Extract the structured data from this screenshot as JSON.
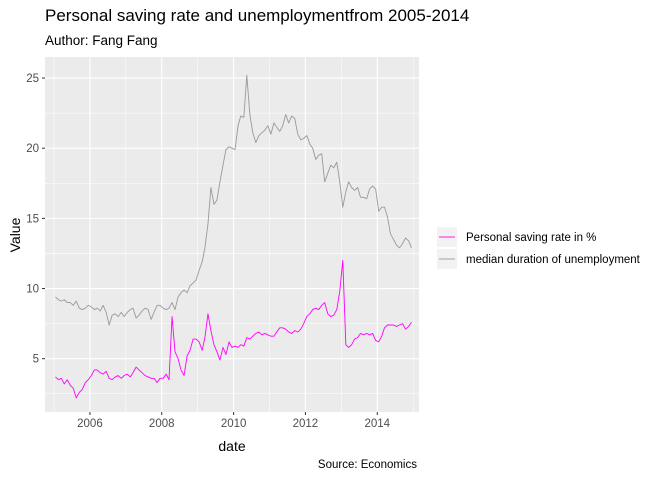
{
  "chart_data": {
    "type": "line",
    "title": "Personal saving rate and unemploymentfrom 2005-2014",
    "subtitle": "Author: Fang Fang",
    "caption": "Source: Economics",
    "xlabel": "date",
    "ylabel": "Value",
    "xlim": [
      "2004-10-01",
      "2015-03-01"
    ],
    "ylim": [
      1.2,
      26.5
    ],
    "x_ticks": [
      "2006",
      "2008",
      "2010",
      "2012",
      "2014"
    ],
    "y_ticks": [
      5,
      10,
      15,
      20,
      25
    ],
    "grid": true,
    "legend_position": "right",
    "series": [
      {
        "name": "Personal saving rate in %",
        "color": "#ff00ff",
        "x": [
          "2005-01",
          "2005-02",
          "2005-03",
          "2005-04",
          "2005-05",
          "2005-06",
          "2005-07",
          "2005-08",
          "2005-09",
          "2005-10",
          "2005-11",
          "2005-12",
          "2006-01",
          "2006-02",
          "2006-03",
          "2006-04",
          "2006-05",
          "2006-06",
          "2006-07",
          "2006-08",
          "2006-09",
          "2006-10",
          "2006-11",
          "2006-12",
          "2007-01",
          "2007-02",
          "2007-03",
          "2007-04",
          "2007-05",
          "2007-06",
          "2007-07",
          "2007-08",
          "2007-09",
          "2007-10",
          "2007-11",
          "2007-12",
          "2008-01",
          "2008-02",
          "2008-03",
          "2008-04",
          "2008-05",
          "2008-06",
          "2008-07",
          "2008-08",
          "2008-09",
          "2008-10",
          "2008-11",
          "2008-12",
          "2009-01",
          "2009-02",
          "2009-03",
          "2009-04",
          "2009-05",
          "2009-06",
          "2009-07",
          "2009-08",
          "2009-09",
          "2009-10",
          "2009-11",
          "2009-12",
          "2010-01",
          "2010-02",
          "2010-03",
          "2010-04",
          "2010-05",
          "2010-06",
          "2010-07",
          "2010-08",
          "2010-09",
          "2010-10",
          "2010-11",
          "2010-12",
          "2011-01",
          "2011-02",
          "2011-03",
          "2011-04",
          "2011-05",
          "2011-06",
          "2011-07",
          "2011-08",
          "2011-09",
          "2011-10",
          "2011-11",
          "2011-12",
          "2012-01",
          "2012-02",
          "2012-03",
          "2012-04",
          "2012-05",
          "2012-06",
          "2012-07",
          "2012-08",
          "2012-09",
          "2012-10",
          "2012-11",
          "2012-12",
          "2013-01",
          "2013-02",
          "2013-03",
          "2013-04",
          "2013-05",
          "2013-06",
          "2013-07",
          "2013-08",
          "2013-09",
          "2013-10",
          "2013-11",
          "2013-12",
          "2014-01",
          "2014-02",
          "2014-03",
          "2014-04",
          "2014-05",
          "2014-06",
          "2014-07",
          "2014-08",
          "2014-09",
          "2014-10",
          "2014-11",
          "2014-12"
        ],
        "values": [
          3.7,
          3.5,
          3.6,
          3.2,
          3.5,
          3.1,
          2.9,
          2.2,
          2.6,
          2.8,
          3.3,
          3.5,
          3.8,
          4.2,
          4.2,
          4.0,
          3.9,
          4.1,
          3.6,
          3.5,
          3.7,
          3.8,
          3.6,
          3.8,
          3.9,
          3.7,
          4.0,
          4.4,
          4.2,
          4.0,
          3.8,
          3.7,
          3.6,
          3.6,
          3.3,
          3.6,
          3.6,
          3.9,
          3.5,
          8.0,
          5.5,
          5.0,
          4.2,
          3.8,
          5.2,
          5.6,
          6.4,
          6.4,
          6.2,
          5.6,
          6.5,
          8.2,
          7.0,
          6.0,
          5.5,
          4.9,
          5.8,
          5.3,
          6.2,
          5.8,
          5.9,
          5.8,
          6.0,
          5.9,
          6.5,
          6.4,
          6.6,
          6.8,
          6.9,
          6.7,
          6.8,
          6.7,
          6.6,
          6.6,
          6.9,
          7.2,
          7.2,
          7.1,
          6.9,
          6.8,
          7.0,
          6.9,
          7.1,
          7.5,
          8.0,
          8.2,
          8.5,
          8.6,
          8.5,
          8.8,
          9.0,
          8.2,
          8.0,
          8.1,
          8.5,
          9.8,
          12.0,
          6.0,
          5.8,
          6.0,
          6.4,
          6.5,
          6.8,
          6.7,
          6.8,
          6.7,
          6.8,
          6.3,
          6.2,
          6.6,
          7.2,
          7.4,
          7.4,
          7.4,
          7.3,
          7.4,
          7.5,
          7.1,
          7.3,
          7.6
        ]
      },
      {
        "name": "median duration of unemployment",
        "color": "#999999",
        "x": [
          "2005-01",
          "2005-02",
          "2005-03",
          "2005-04",
          "2005-05",
          "2005-06",
          "2005-07",
          "2005-08",
          "2005-09",
          "2005-10",
          "2005-11",
          "2005-12",
          "2006-01",
          "2006-02",
          "2006-03",
          "2006-04",
          "2006-05",
          "2006-06",
          "2006-07",
          "2006-08",
          "2006-09",
          "2006-10",
          "2006-11",
          "2006-12",
          "2007-01",
          "2007-02",
          "2007-03",
          "2007-04",
          "2007-05",
          "2007-06",
          "2007-07",
          "2007-08",
          "2007-09",
          "2007-10",
          "2007-11",
          "2007-12",
          "2008-01",
          "2008-02",
          "2008-03",
          "2008-04",
          "2008-05",
          "2008-06",
          "2008-07",
          "2008-08",
          "2008-09",
          "2008-10",
          "2008-11",
          "2008-12",
          "2009-01",
          "2009-02",
          "2009-03",
          "2009-04",
          "2009-05",
          "2009-06",
          "2009-07",
          "2009-08",
          "2009-09",
          "2009-10",
          "2009-11",
          "2009-12",
          "2010-01",
          "2010-02",
          "2010-03",
          "2010-04",
          "2010-05",
          "2010-06",
          "2010-07",
          "2010-08",
          "2010-09",
          "2010-10",
          "2010-11",
          "2010-12",
          "2011-01",
          "2011-02",
          "2011-03",
          "2011-04",
          "2011-05",
          "2011-06",
          "2011-07",
          "2011-08",
          "2011-09",
          "2011-10",
          "2011-11",
          "2011-12",
          "2012-01",
          "2012-02",
          "2012-03",
          "2012-04",
          "2012-05",
          "2012-06",
          "2012-07",
          "2012-08",
          "2012-09",
          "2012-10",
          "2012-11",
          "2012-12",
          "2013-01",
          "2013-02",
          "2013-03",
          "2013-04",
          "2013-05",
          "2013-06",
          "2013-07",
          "2013-08",
          "2013-09",
          "2013-10",
          "2013-11",
          "2013-12",
          "2014-01",
          "2014-02",
          "2014-03",
          "2014-04",
          "2014-05",
          "2014-06",
          "2014-07",
          "2014-08",
          "2014-09",
          "2014-10",
          "2014-11",
          "2014-12"
        ],
        "values": [
          9.4,
          9.2,
          9.1,
          9.2,
          9.0,
          9.0,
          8.8,
          9.1,
          8.6,
          8.5,
          8.6,
          8.8,
          8.7,
          8.5,
          8.6,
          8.4,
          8.8,
          8.3,
          7.4,
          8.1,
          8.2,
          8.0,
          8.3,
          8.0,
          8.3,
          8.5,
          8.6,
          7.9,
          8.1,
          8.4,
          8.6,
          8.5,
          7.8,
          8.3,
          8.8,
          8.8,
          8.6,
          8.5,
          8.6,
          9.0,
          8.5,
          9.4,
          9.7,
          9.9,
          9.7,
          10.2,
          10.4,
          10.6,
          11.3,
          11.9,
          12.9,
          14.6,
          17.2,
          16.0,
          16.3,
          17.6,
          18.8,
          19.9,
          20.1,
          20.0,
          19.9,
          21.6,
          22.3,
          22.2,
          25.2,
          22.4,
          21.1,
          20.4,
          20.9,
          21.1,
          21.3,
          21.6,
          21.0,
          21.8,
          21.5,
          21.2,
          21.6,
          22.4,
          21.8,
          22.3,
          22.1,
          21.0,
          20.6,
          20.7,
          20.9,
          20.3,
          20.0,
          19.2,
          19.5,
          19.6,
          17.6,
          18.2,
          18.8,
          18.6,
          19.0,
          17.6,
          15.8,
          16.9,
          17.6,
          17.2,
          17.0,
          17.2,
          16.5,
          16.5,
          16.4,
          17.1,
          17.3,
          17.1,
          15.5,
          15.8,
          15.8,
          15.1,
          13.9,
          13.5,
          13.1,
          12.9,
          13.2,
          13.6,
          13.4,
          12.9
        ]
      }
    ]
  }
}
